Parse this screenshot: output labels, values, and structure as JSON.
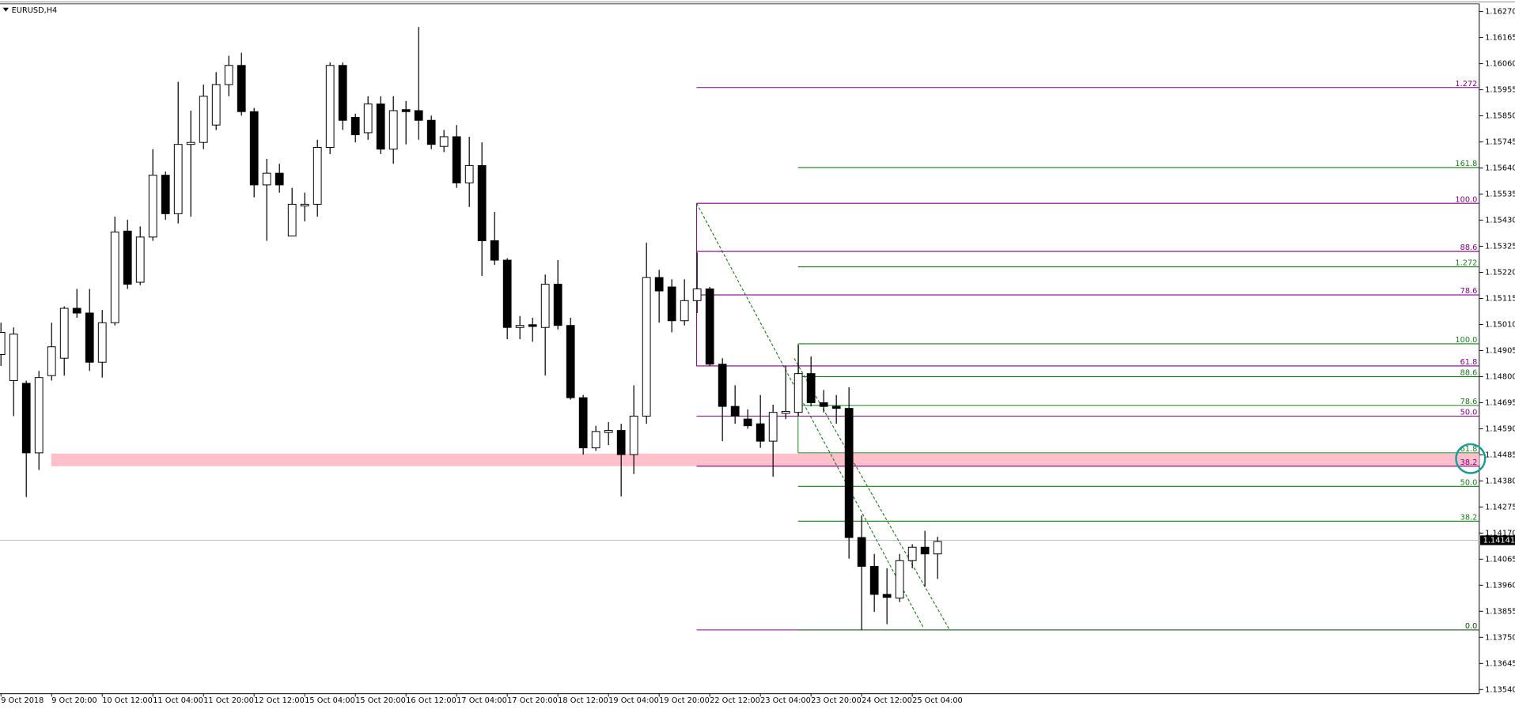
{
  "chart_data": {
    "type": "candlestick",
    "title": "EURUSD,H4",
    "categories": [
      "9 Oct 2018",
      null,
      null,
      null,
      "9 Oct 20:00",
      null,
      null,
      null,
      "10 Oct 12:00",
      null,
      null,
      null,
      "11 Oct 04:00",
      null,
      null,
      null,
      "11 Oct 20:00",
      null,
      null,
      null,
      "12 Oct 12:00",
      null,
      null,
      null,
      "15 Oct 04:00",
      null,
      null,
      null,
      "15 Oct 20:00",
      null,
      null,
      null,
      "16 Oct 12:00",
      null,
      null,
      null,
      "17 Oct 04:00",
      null,
      null,
      null,
      "17 Oct 20:00",
      null,
      null,
      null,
      "18 Oct 12:00",
      null,
      null,
      null,
      "19 Oct 04:00",
      null,
      null,
      null,
      "19 Oct 20:00",
      null,
      null,
      null,
      "22 Oct 12:00",
      null,
      null,
      null,
      "23 Oct 04:00",
      null,
      null,
      null,
      "23 Oct 20:00",
      null,
      null,
      null,
      "24 Oct 12:00",
      null,
      null,
      null,
      "25 Oct 04:00",
      null,
      null
    ],
    "open": [
      1.14889,
      1.14784,
      1.14773,
      1.14493,
      1.14804,
      1.14874,
      1.15075,
      1.15056,
      1.14858,
      1.15017,
      1.15386,
      1.1518,
      1.15362,
      1.15611,
      1.15456,
      1.15735,
      1.15743,
      1.15813,
      1.15976,
      1.16053,
      1.15867,
      1.15572,
      1.15619,
      1.15366,
      1.15487,
      1.15494,
      1.15723,
      1.16053,
      1.15844,
      1.15782,
      1.15898,
      1.15716,
      1.15875,
      1.15871,
      1.15832,
      1.15727,
      1.15766,
      1.1558,
      1.1565,
      1.15347,
      1.15269,
      1.14998,
      1.15009,
      1.14998,
      1.15172,
      1.15006,
      1.14715,
      1.14513,
      1.14575,
      1.14583,
      1.14486,
      1.14641,
      1.15199,
      1.15161,
      1.15025,
      1.15106,
      1.15153,
      1.1485,
      1.1468,
      1.14629,
      1.1461,
      1.1454,
      1.14652,
      1.14656,
      1.14812,
      1.14695,
      1.1468,
      1.14672,
      1.14152,
      1.14036,
      1.13923,
      1.13908,
      1.14059,
      1.14113,
      1.14086
    ],
    "high": [
      1.15017,
      1.14998,
      1.14784,
      1.14823,
      1.15017,
      1.15083,
      1.15153,
      1.15153,
      1.15068,
      1.15444,
      1.15432,
      1.15405,
      1.15716,
      1.15626,
      1.15987,
      1.15871,
      1.15976,
      1.16026,
      1.16092,
      1.16104,
      1.15882,
      1.15677,
      1.15657,
      1.1556,
      1.15541,
      1.15754,
      1.16065,
      1.16065,
      1.15859,
      1.15929,
      1.15929,
      1.15929,
      1.1591,
      1.16208,
      1.15851,
      1.15793,
      1.15813,
      1.15766,
      1.15743,
      1.15463,
      1.15277,
      1.15044,
      1.15037,
      1.15211,
      1.15269,
      1.15037,
      1.14726,
      1.14602,
      1.14617,
      1.1461,
      1.14765,
      1.15339,
      1.1523,
      1.15192,
      1.15192,
      1.153,
      1.15161,
      1.14874,
      1.14765,
      1.14668,
      1.14726,
      1.14687,
      1.14843,
      1.14928,
      1.14881,
      1.14746,
      1.14726,
      1.14757,
      1.14241,
      1.14086,
      1.14028,
      1.14086,
      1.14125,
      1.14179,
      1.14155
    ],
    "low": [
      1.14843,
      1.14641,
      1.14315,
      1.14424,
      1.14784,
      1.14804,
      1.15037,
      1.14823,
      1.14796,
      1.15006,
      1.15153,
      1.15168,
      1.15347,
      1.15432,
      1.15417,
      1.15444,
      1.15716,
      1.15793,
      1.15929,
      1.15851,
      1.15522,
      1.15347,
      1.15541,
      1.15366,
      1.15425,
      1.15444,
      1.15696,
      1.15793,
      1.15743,
      1.15754,
      1.15696,
      1.15657,
      1.15735,
      1.15754,
      1.15716,
      1.15704,
      1.1556,
      1.15483,
      1.15206,
      1.1525,
      1.14951,
      1.14951,
      1.1494,
      1.14804,
      1.1499,
      1.14707,
      1.14486,
      1.14501,
      1.14524,
      1.14317,
      1.14408,
      1.1461,
      1.15017,
      1.14978,
      1.15006,
      1.15056,
      1.14843,
      1.1454,
      1.1461,
      1.1459,
      1.14513,
      1.14397,
      1.14629,
      1.14641,
      1.1468,
      1.14656,
      1.1461,
      1.14067,
      1.1378,
      1.13853,
      1.13803,
      1.13892,
      1.14028,
      1.13955,
      1.13985
    ],
    "close": [
      1.14978,
      1.14971,
      1.14493,
      1.14796,
      1.1492,
      1.15075,
      1.15056,
      1.14858,
      1.15017,
      1.15382,
      1.15172,
      1.15362,
      1.15611,
      1.15456,
      1.15735,
      1.15743,
      1.15929,
      1.15976,
      1.16053,
      1.15867,
      1.15572,
      1.15619,
      1.15572,
      1.15494,
      1.15494,
      1.15723,
      1.16053,
      1.15832,
      1.15774,
      1.15898,
      1.15716,
      1.15871,
      1.15867,
      1.15832,
      1.15735,
      1.15766,
      1.1558,
      1.1565,
      1.15347,
      1.15269,
      1.14998,
      1.15006,
      1.15002,
      1.15172,
      1.15006,
      1.14715,
      1.14513,
      1.14579,
      1.14583,
      1.14486,
      1.14641,
      1.15199,
      1.15145,
      1.15025,
      1.15106,
      1.15153,
      1.1485,
      1.1468,
      1.14641,
      1.14602,
      1.1454,
      1.14656,
      1.1466,
      1.14812,
      1.14695,
      1.1468,
      1.14672,
      1.14152,
      1.14036,
      1.13923,
      1.13911,
      1.14059,
      1.14113,
      1.14086,
      1.14136
    ],
    "up_color": "#ffffff",
    "down_color": "#000000",
    "ylim": [
      1.13523,
      1.16301
    ],
    "yticks": [
      {
        "value": 1.1627,
        "label": "1.16270"
      },
      {
        "value": 1.16165,
        "label": "1.16165"
      },
      {
        "value": 1.1606,
        "label": "1.16060"
      },
      {
        "value": 1.15955,
        "label": "1.15955"
      },
      {
        "value": 1.1585,
        "label": "1.15850"
      },
      {
        "value": 1.15745,
        "label": "1.15745"
      },
      {
        "value": 1.1564,
        "label": "1.15640"
      },
      {
        "value": 1.15535,
        "label": "1.15535"
      },
      {
        "value": 1.1543,
        "label": "1.15430"
      },
      {
        "value": 1.15325,
        "label": "1.15325"
      },
      {
        "value": 1.1522,
        "label": "1.15220"
      },
      {
        "value": 1.15115,
        "label": "1.15115"
      },
      {
        "value": 1.1501,
        "label": "1.15010"
      },
      {
        "value": 1.14905,
        "label": "1.14905"
      },
      {
        "value": 1.148,
        "label": "1.14800"
      },
      {
        "value": 1.14695,
        "label": "1.14695"
      },
      {
        "value": 1.1459,
        "label": "1.14590"
      },
      {
        "value": 1.14485,
        "label": "1.14485"
      },
      {
        "value": 1.1438,
        "label": "1.14380"
      },
      {
        "value": 1.14275,
        "label": "1.14275"
      },
      {
        "value": 1.1417,
        "label": "1.14170"
      },
      {
        "value": 1.14065,
        "label": "1.14065"
      },
      {
        "value": 1.1396,
        "label": "1.13960"
      },
      {
        "value": 1.13855,
        "label": "1.13855"
      },
      {
        "value": 1.1375,
        "label": "1.13750"
      },
      {
        "value": 1.13645,
        "label": "1.13645"
      },
      {
        "value": 1.1354,
        "label": "1.13540"
      }
    ],
    "last_price": 1.14141,
    "zone": {
      "top": 1.1449,
      "bottom": 1.14439,
      "color": "#ffc0cb"
    },
    "fib_sets": [
      {
        "color": "#800080",
        "levels": [
          {
            "label": "1.272",
            "price": 1.15964
          },
          {
            "label": "100.0",
            "price": 1.15498
          },
          {
            "label": "88.6",
            "price": 1.15304
          },
          {
            "label": "78.6",
            "price": 1.15129
          },
          {
            "label": "61.8",
            "price": 1.14843
          },
          {
            "label": "50.0",
            "price": 1.14641
          },
          {
            "label": "38.2",
            "price": 1.14439
          },
          {
            "label": "0.0",
            "price": 1.1378
          }
        ]
      },
      {
        "color": "#1a7a1a",
        "levels": [
          {
            "label": "161.8",
            "price": 1.15642
          },
          {
            "label": "1.272",
            "price": 1.15242
          },
          {
            "label": "100.0",
            "price": 1.14932
          },
          {
            "label": "88.6",
            "price": 1.148
          },
          {
            "label": "78.6",
            "price": 1.14684
          },
          {
            "label": "61.8",
            "price": 1.14493
          },
          {
            "label": "50.0",
            "price": 1.14358
          },
          {
            "label": "38.2",
            "price": 1.14218
          },
          {
            "label": "0.0",
            "price": 1.1378
          }
        ]
      }
    ]
  }
}
